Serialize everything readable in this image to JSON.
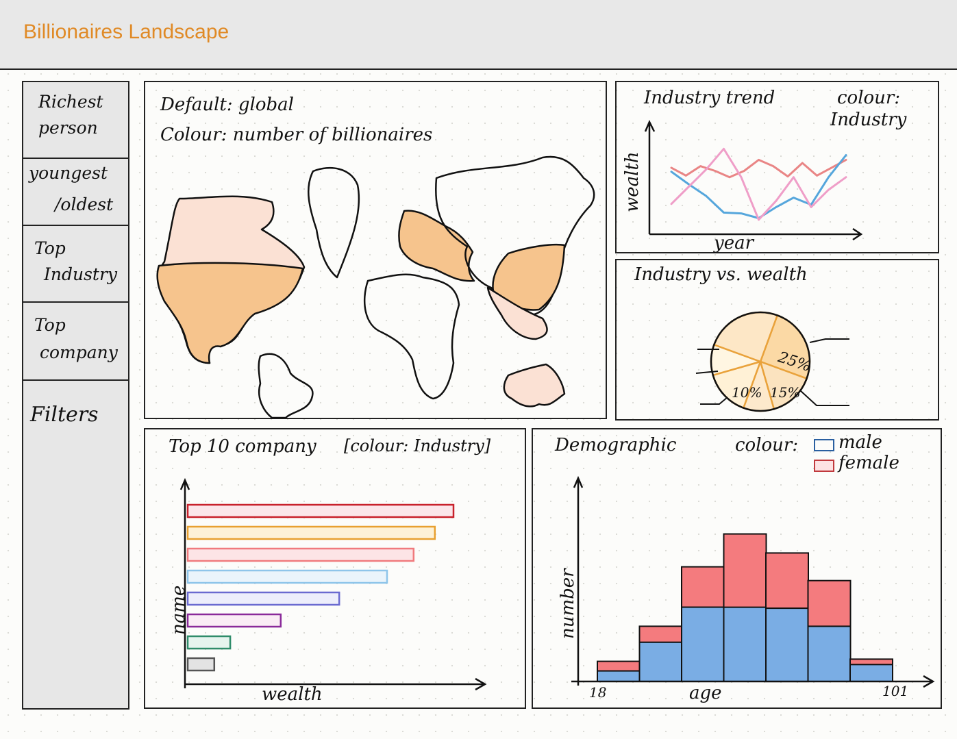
{
  "app": {
    "title": "Billionaires Landscape"
  },
  "sidebar": {
    "items": [
      {
        "lines": [
          "Richest",
          "person"
        ]
      },
      {
        "lines": [
          "youngest",
          "/oldest"
        ]
      },
      {
        "lines": [
          "Top",
          "Industry"
        ]
      },
      {
        "lines": [
          "Top",
          "company"
        ]
      }
    ],
    "filters_label": "Filters"
  },
  "map_panel": {
    "line1": "Default: global",
    "line2": "Colour: number of billionaires",
    "fill_color": "#f6c48d",
    "light_fill_color": "#fbe1d4"
  },
  "trend_panel": {
    "title": "Industry trend",
    "colour_label": "colour:",
    "colour_value": "Industry",
    "xlabel": "year",
    "ylabel": "wealth"
  },
  "pie_panel": {
    "title": "Industry vs. wealth",
    "labels": [
      "25%",
      "10%",
      "15%"
    ]
  },
  "bar_panel": {
    "title": "Top 10 company",
    "colour_note": "[colour: Industry]",
    "xlabel": "wealth",
    "ylabel": "name"
  },
  "demo_panel": {
    "title": "Demographic",
    "colour_label": "colour:",
    "legend": [
      {
        "name": "male",
        "color": "#7aade4"
      },
      {
        "name": "female",
        "color": "#f47b7e"
      }
    ],
    "xlabel": "age",
    "ylabel": "number",
    "x_start": "18",
    "x_end": "101"
  },
  "chart_data": [
    {
      "type": "line",
      "title": "Industry trend",
      "xlabel": "year",
      "ylabel": "wealth",
      "series": [
        {
          "color": "#e98585",
          "values": [
            0.74,
            0.64,
            0.76,
            0.7,
            0.62,
            0.7,
            0.84,
            0.76,
            0.63,
            0.8,
            0.64,
            0.74,
            0.84
          ]
        },
        {
          "color": "#55a6dc",
          "values": [
            0.69,
            0.53,
            0.38,
            0.17,
            0.16,
            0.1,
            0.24,
            0.36,
            0.27,
            0.62,
            0.9
          ]
        },
        {
          "color": "#ef9ec8",
          "values": [
            0.28,
            0.5,
            0.72,
            0.98,
            0.62,
            0.08,
            0.32,
            0.62,
            0.24,
            0.46,
            0.62
          ]
        }
      ]
    },
    {
      "type": "pie",
      "title": "Industry vs. wealth",
      "slices": [
        {
          "label": "25%",
          "value": 25
        },
        {
          "label": "15%",
          "value": 15
        },
        {
          "label": "10%",
          "value": 10
        },
        {
          "label": "",
          "value": 15
        },
        {
          "label": "",
          "value": 10
        },
        {
          "label": "",
          "value": 25
        }
      ]
    },
    {
      "type": "bar",
      "orientation": "horizontal",
      "title": "Top 10 company",
      "xlabel": "wealth",
      "ylabel": "name",
      "values": [
        100,
        93,
        85,
        75,
        57,
        35,
        16,
        10
      ],
      "colors": [
        "#c8212b",
        "#e8a030",
        "#f07a7d",
        "#8ec5ea",
        "#6a6ad0",
        "#8a2a9a",
        "#2f8c6a",
        "#555555"
      ],
      "fills": [
        "#fbe6ea",
        "#fdf1d6",
        "#fde4e6",
        "#eaf4fb",
        "#edeefb",
        "#faedf5",
        "#e6f4ee",
        "#e3e3e3"
      ]
    },
    {
      "type": "bar",
      "stacked": true,
      "title": "Demographic",
      "xlabel": "age",
      "ylabel": "number",
      "x_range": [
        18,
        101
      ],
      "series": [
        {
          "name": "male",
          "values": [
            10,
            37,
            70,
            70,
            69,
            52,
            16
          ]
        },
        {
          "name": "female",
          "values": [
            9,
            15,
            38,
            69,
            52,
            43,
            5
          ]
        }
      ]
    }
  ]
}
